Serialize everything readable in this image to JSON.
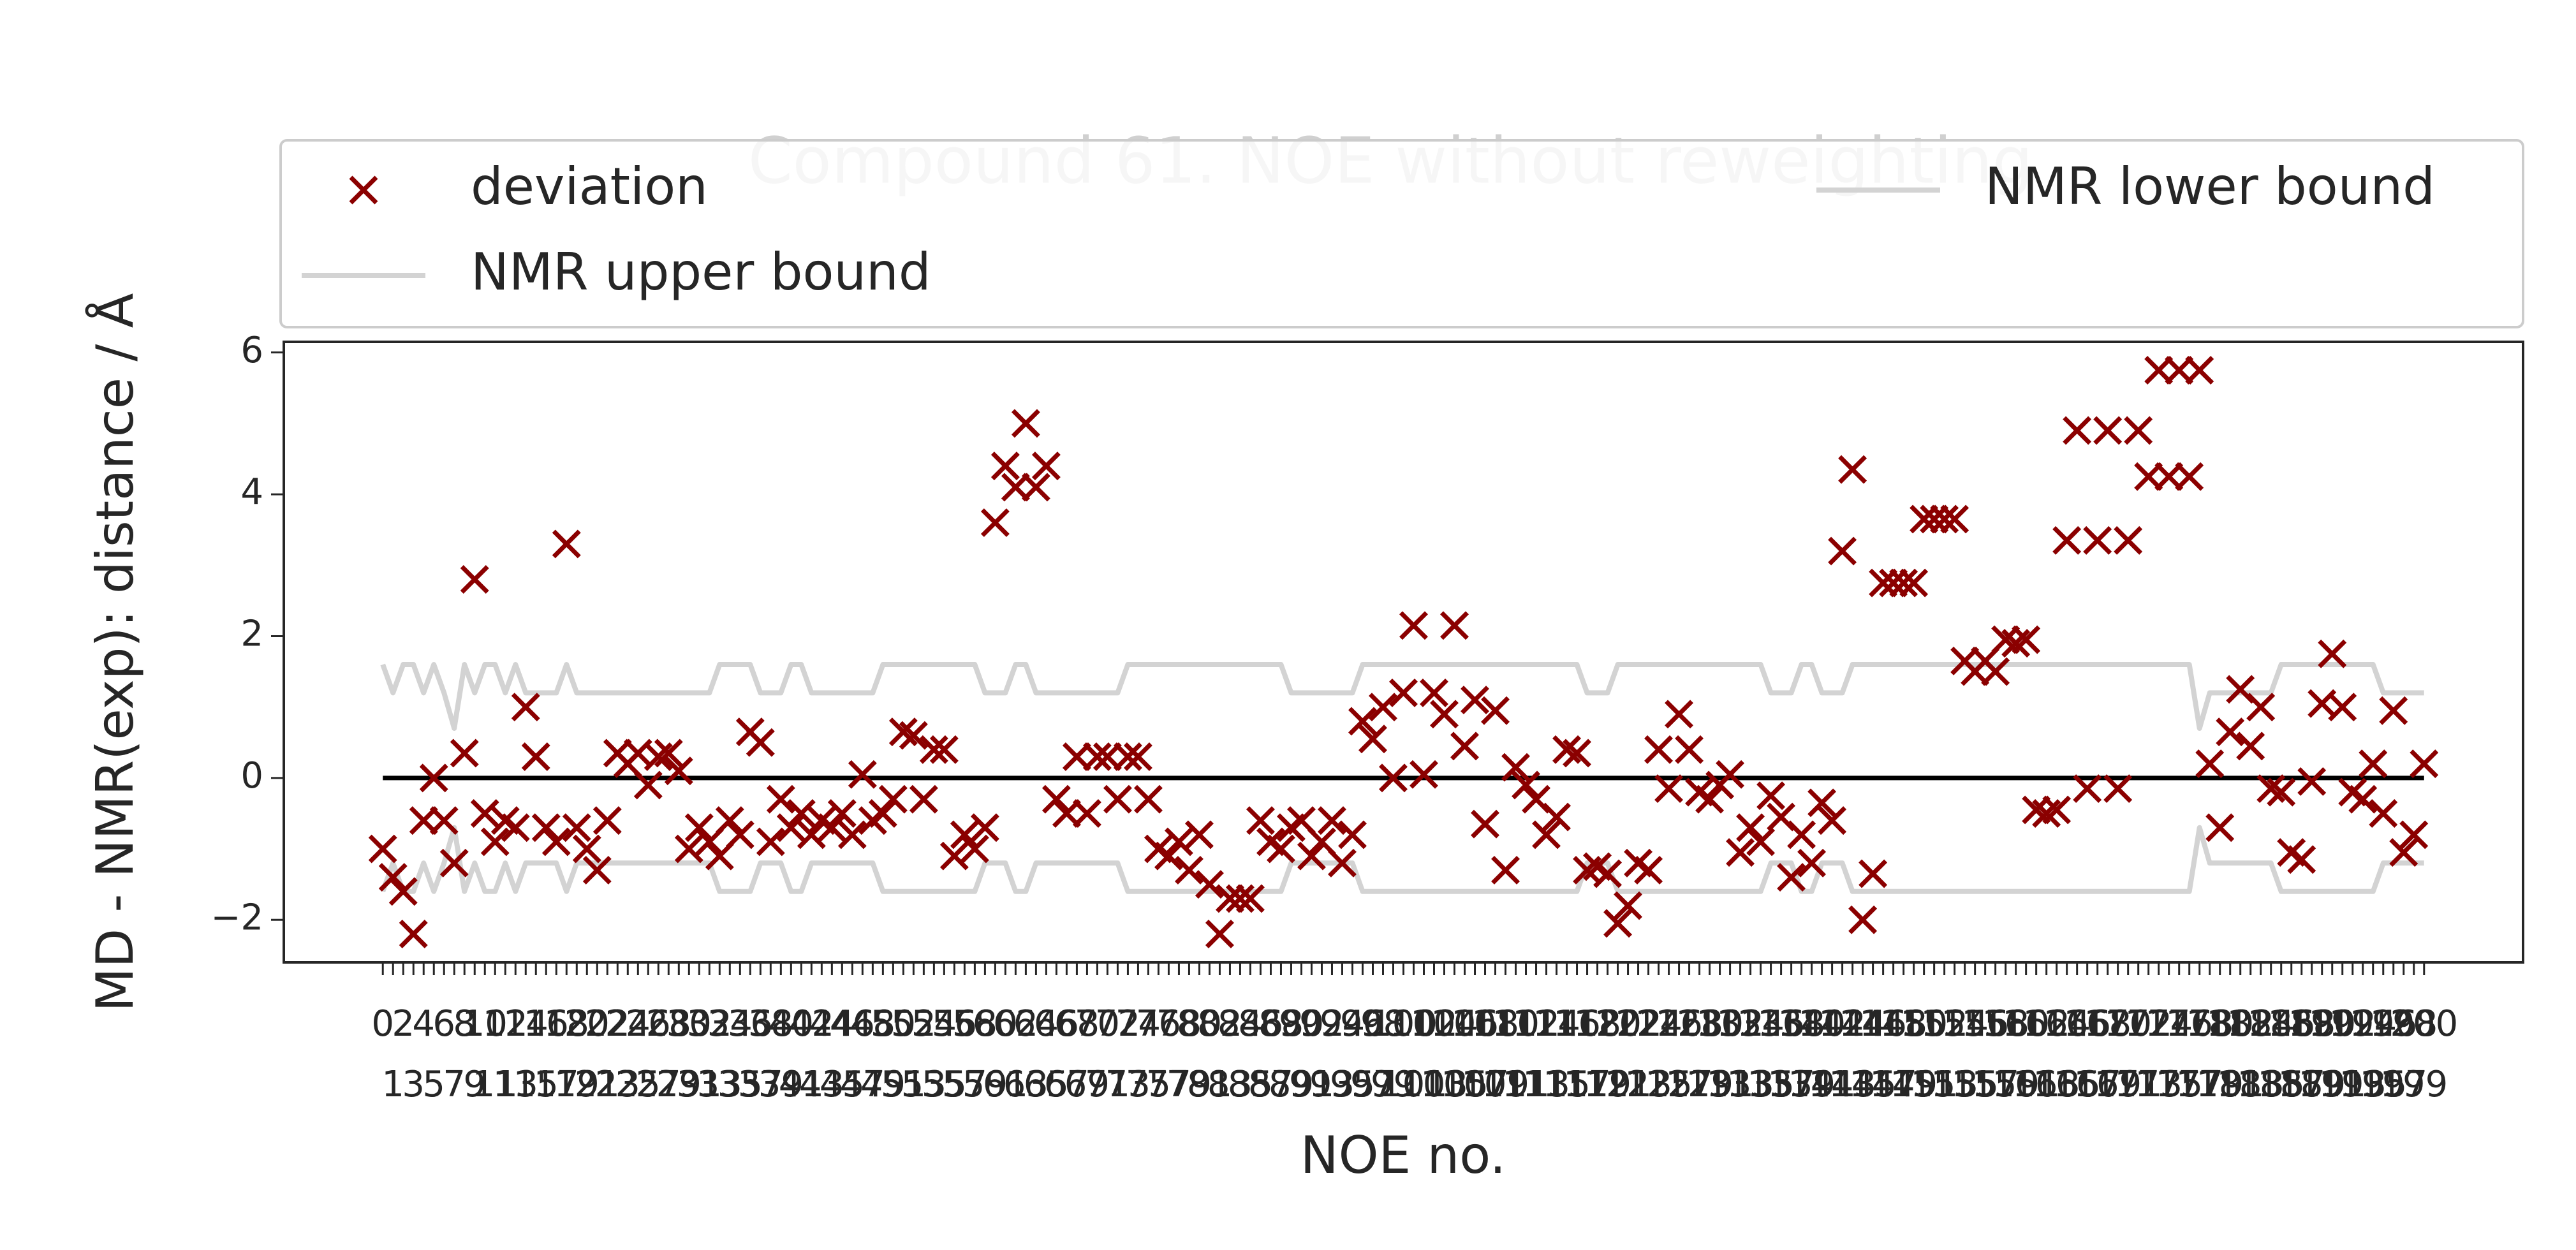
{
  "chart_data": {
    "type": "scatter-with-bounds",
    "title": "Compound 61. NOE without reweighting",
    "xlabel": "NOE no.",
    "ylabel": "MD - NMR(exp): distance / Å",
    "x": [
      0,
      1,
      2,
      3,
      4,
      5,
      6,
      7,
      8,
      9,
      10,
      11,
      12,
      13,
      14,
      15,
      16,
      17,
      18,
      19,
      20,
      21,
      22,
      23,
      24,
      25,
      26,
      27,
      28,
      29,
      30,
      31,
      32,
      33,
      34,
      35,
      36,
      37,
      38,
      39,
      40,
      41,
      42,
      43,
      44,
      45,
      46,
      47,
      48,
      49,
      50,
      51,
      52,
      53,
      54,
      55,
      56,
      57,
      58,
      59,
      60,
      61,
      62,
      63,
      64,
      65,
      66,
      67,
      68,
      69,
      70,
      71,
      72,
      73,
      74,
      75,
      76,
      77,
      78,
      79,
      80,
      81,
      82,
      83,
      84,
      85,
      86,
      87,
      88,
      89,
      90,
      91,
      92,
      93,
      94,
      95,
      96,
      97,
      98,
      99,
      100,
      101,
      102,
      103,
      104,
      105,
      106,
      107,
      108,
      109,
      110,
      111,
      112,
      113,
      114,
      115,
      116,
      117,
      118,
      119,
      120,
      121,
      122,
      123,
      124,
      125,
      126,
      127,
      128,
      129,
      130,
      131,
      132,
      133,
      134,
      135,
      136,
      137,
      138,
      139,
      140,
      141,
      142,
      143,
      144,
      145,
      146,
      147,
      148,
      149,
      150,
      151,
      152,
      153,
      154,
      155,
      156,
      157,
      158,
      159,
      160,
      161,
      162,
      163,
      164,
      165,
      166,
      167,
      168,
      169,
      170,
      171,
      172,
      173,
      174,
      175,
      176,
      177,
      178,
      179,
      180,
      181,
      182,
      183,
      184,
      185,
      186,
      187,
      188,
      189,
      190,
      191,
      192,
      193,
      194,
      195,
      196,
      197,
      198,
      199,
      200
    ],
    "series": [
      {
        "name": "deviation",
        "color": "#8b0000",
        "style": "x-marker",
        "values": [
          -1.0,
          -1.4,
          -1.6,
          -2.2,
          -0.6,
          0.0,
          -0.6,
          -1.2,
          0.35,
          2.8,
          -0.5,
          -0.9,
          -0.6,
          -0.7,
          1.0,
          0.3,
          -0.7,
          -0.9,
          3.3,
          -0.7,
          -1.0,
          -1.3,
          -0.6,
          0.35,
          0.2,
          0.35,
          -0.1,
          0.3,
          0.35,
          0.1,
          -1.0,
          -0.7,
          -0.9,
          -1.1,
          -0.6,
          -0.8,
          0.65,
          0.5,
          -0.9,
          -0.3,
          -0.7,
          -0.5,
          -0.8,
          -0.6,
          -0.7,
          -0.5,
          -0.8,
          0.05,
          -0.6,
          -0.5,
          -0.3,
          0.65,
          0.6,
          -0.3,
          0.4,
          0.4,
          -1.1,
          -0.8,
          -1.0,
          -0.7,
          3.6,
          4.4,
          4.1,
          5.0,
          4.1,
          4.4,
          -0.3,
          -0.5,
          0.3,
          -0.5,
          0.3,
          0.3,
          -0.3,
          0.3,
          0.3,
          -0.3,
          -1.0,
          -1.1,
          -0.9,
          -1.3,
          -0.8,
          -1.5,
          -2.2,
          -1.7,
          -1.7,
          -1.7,
          -0.6,
          -0.9,
          -1.0,
          -0.7,
          -0.6,
          -1.1,
          -0.9,
          -0.6,
          -1.2,
          -0.8,
          0.8,
          0.55,
          1.0,
          0.0,
          1.2,
          2.15,
          0.05,
          1.2,
          0.9,
          2.15,
          0.45,
          1.1,
          -0.65,
          0.95,
          -1.3,
          0.15,
          -0.1,
          -0.3,
          -0.8,
          -0.55,
          0.4,
          0.35,
          -1.3,
          -1.25,
          -1.35,
          -2.05,
          -1.8,
          -1.2,
          -1.3,
          0.4,
          -0.15,
          0.9,
          0.4,
          -0.2,
          -0.3,
          -0.1,
          0.05,
          -1.05,
          -0.7,
          -0.9,
          -0.25,
          -0.55,
          -1.4,
          -0.8,
          -1.2,
          -0.35,
          -0.6,
          3.2,
          4.35,
          -2.0,
          -1.35,
          2.75,
          2.75,
          2.75,
          2.75,
          3.65,
          3.65,
          3.65,
          3.65,
          1.65,
          1.5,
          1.65,
          1.5,
          1.95,
          1.9,
          1.95,
          -0.45,
          -0.5,
          -0.45,
          3.35,
          4.9,
          -0.15,
          3.35,
          4.9,
          -0.15,
          3.35,
          4.9,
          4.25,
          5.75,
          4.25,
          5.75,
          4.25,
          5.75,
          0.2,
          -0.7,
          0.65,
          1.25,
          0.45,
          1.0,
          -0.15,
          -0.2,
          -1.05,
          -1.15,
          -0.05,
          1.05,
          1.75,
          1.0,
          -0.2,
          -0.3,
          0.2,
          -0.5,
          0.95,
          -1.05,
          -0.8,
          0.2
        ]
      },
      {
        "name": "NMR upper bound",
        "color": "#d3d3d3",
        "style": "line",
        "values": [
          1.6,
          1.2,
          1.6,
          1.6,
          1.2,
          1.6,
          1.2,
          0.7,
          1.6,
          1.2,
          1.6,
          1.6,
          1.2,
          1.6,
          1.2,
          1.2,
          1.2,
          1.2,
          1.6,
          1.2,
          1.2,
          1.2,
          1.2,
          1.2,
          1.2,
          1.2,
          1.2,
          1.2,
          1.2,
          1.2,
          1.2,
          1.2,
          1.2,
          1.6,
          1.6,
          1.6,
          1.6,
          1.2,
          1.2,
          1.2,
          1.6,
          1.6,
          1.2,
          1.2,
          1.2,
          1.2,
          1.2,
          1.2,
          1.2,
          1.6,
          1.6,
          1.6,
          1.6,
          1.6,
          1.6,
          1.6,
          1.6,
          1.6,
          1.6,
          1.2,
          1.2,
          1.2,
          1.6,
          1.6,
          1.2,
          1.2,
          1.2,
          1.2,
          1.2,
          1.2,
          1.2,
          1.2,
          1.2,
          1.6,
          1.6,
          1.6,
          1.6,
          1.6,
          1.6,
          1.6,
          1.6,
          1.6,
          1.6,
          1.6,
          1.6,
          1.6,
          1.6,
          1.6,
          1.6,
          1.2,
          1.2,
          1.2,
          1.2,
          1.2,
          1.2,
          1.2,
          1.6,
          1.6,
          1.6,
          1.6,
          1.6,
          1.6,
          1.6,
          1.6,
          1.6,
          1.6,
          1.6,
          1.6,
          1.6,
          1.6,
          1.6,
          1.6,
          1.6,
          1.6,
          1.6,
          1.6,
          1.6,
          1.6,
          1.2,
          1.2,
          1.2,
          1.6,
          1.6,
          1.6,
          1.6,
          1.6,
          1.6,
          1.6,
          1.6,
          1.6,
          1.6,
          1.6,
          1.6,
          1.6,
          1.6,
          1.6,
          1.2,
          1.2,
          1.2,
          1.6,
          1.6,
          1.2,
          1.2,
          1.2,
          1.6,
          1.6,
          1.6,
          1.6,
          1.6,
          1.6,
          1.6,
          1.6,
          1.6,
          1.6,
          1.6,
          1.6,
          1.6,
          1.6,
          1.6,
          1.6,
          1.6,
          1.6,
          1.6,
          1.6,
          1.6,
          1.6,
          1.6,
          1.6,
          1.6,
          1.6,
          1.6,
          1.6,
          1.6,
          1.6,
          1.6,
          1.6,
          1.6,
          1.6,
          0.7,
          1.2,
          1.2,
          1.2,
          1.2,
          1.2,
          1.2,
          1.2,
          1.6,
          1.6,
          1.6,
          1.6,
          1.6,
          1.6,
          1.6,
          1.6,
          1.6,
          1.6,
          1.2,
          1.2,
          1.2,
          1.2,
          1.2
        ]
      },
      {
        "name": "NMR lower bound",
        "color": "#d3d3d3",
        "style": "line",
        "values": [
          -1.6,
          -1.2,
          -1.6,
          -1.6,
          -1.2,
          -1.6,
          -1.2,
          -0.7,
          -1.6,
          -1.2,
          -1.6,
          -1.6,
          -1.2,
          -1.6,
          -1.2,
          -1.2,
          -1.2,
          -1.2,
          -1.6,
          -1.2,
          -1.2,
          -1.2,
          -1.2,
          -1.2,
          -1.2,
          -1.2,
          -1.2,
          -1.2,
          -1.2,
          -1.2,
          -1.2,
          -1.2,
          -1.2,
          -1.6,
          -1.6,
          -1.6,
          -1.6,
          -1.2,
          -1.2,
          -1.2,
          -1.6,
          -1.6,
          -1.2,
          -1.2,
          -1.2,
          -1.2,
          -1.2,
          -1.2,
          -1.2,
          -1.6,
          -1.6,
          -1.6,
          -1.6,
          -1.6,
          -1.6,
          -1.6,
          -1.6,
          -1.6,
          -1.6,
          -1.2,
          -1.2,
          -1.2,
          -1.6,
          -1.6,
          -1.2,
          -1.2,
          -1.2,
          -1.2,
          -1.2,
          -1.2,
          -1.2,
          -1.2,
          -1.2,
          -1.6,
          -1.6,
          -1.6,
          -1.6,
          -1.6,
          -1.6,
          -1.6,
          -1.6,
          -1.6,
          -1.6,
          -1.6,
          -1.6,
          -1.6,
          -1.6,
          -1.6,
          -1.6,
          -1.2,
          -1.2,
          -1.2,
          -1.2,
          -1.2,
          -1.2,
          -1.2,
          -1.6,
          -1.6,
          -1.6,
          -1.6,
          -1.6,
          -1.6,
          -1.6,
          -1.6,
          -1.6,
          -1.6,
          -1.6,
          -1.6,
          -1.6,
          -1.6,
          -1.6,
          -1.6,
          -1.6,
          -1.6,
          -1.6,
          -1.6,
          -1.6,
          -1.6,
          -1.2,
          -1.2,
          -1.2,
          -1.6,
          -1.6,
          -1.6,
          -1.6,
          -1.6,
          -1.6,
          -1.6,
          -1.6,
          -1.6,
          -1.6,
          -1.6,
          -1.6,
          -1.6,
          -1.6,
          -1.6,
          -1.2,
          -1.2,
          -1.2,
          -1.6,
          -1.6,
          -1.2,
          -1.2,
          -1.2,
          -1.6,
          -1.6,
          -1.6,
          -1.6,
          -1.6,
          -1.6,
          -1.6,
          -1.6,
          -1.6,
          -1.6,
          -1.6,
          -1.6,
          -1.6,
          -1.6,
          -1.6,
          -1.6,
          -1.6,
          -1.6,
          -1.6,
          -1.6,
          -1.6,
          -1.6,
          -1.6,
          -1.6,
          -1.6,
          -1.6,
          -1.6,
          -1.6,
          -1.6,
          -1.6,
          -1.6,
          -1.6,
          -1.6,
          -1.6,
          -0.7,
          -1.2,
          -1.2,
          -1.2,
          -1.2,
          -1.2,
          -1.2,
          -1.2,
          -1.6,
          -1.6,
          -1.6,
          -1.6,
          -1.6,
          -1.6,
          -1.6,
          -1.6,
          -1.6,
          -1.6,
          -1.2,
          -1.2,
          -1.2,
          -1.2,
          -1.2
        ]
      }
    ],
    "xlim": [
      -9.7,
      209.7
    ],
    "xticks": [
      0,
      1,
      2,
      3,
      4,
      5,
      6,
      7,
      8,
      9,
      10,
      11,
      12,
      13,
      14,
      15,
      16,
      17,
      18,
      19,
      20,
      21,
      22,
      23,
      24,
      25,
      26,
      27,
      28,
      29,
      30,
      31,
      32,
      33,
      34,
      35,
      36,
      37,
      38,
      39,
      40,
      41,
      42,
      43,
      44,
      45,
      46,
      47,
      48,
      49,
      50,
      51,
      52,
      53,
      54,
      55,
      56,
      57,
      58,
      59,
      60,
      61,
      62,
      63,
      64,
      65,
      66,
      67,
      68,
      69,
      70,
      71,
      72,
      73,
      74,
      75,
      76,
      77,
      78,
      79,
      80,
      81,
      82,
      83,
      84,
      85,
      86,
      87,
      88,
      89,
      90,
      91,
      92,
      93,
      94,
      95,
      96,
      97,
      98,
      99,
      100,
      101,
      102,
      103,
      104,
      105,
      106,
      107,
      108,
      109,
      110,
      111,
      112,
      113,
      114,
      115,
      116,
      117,
      118,
      119,
      120,
      121,
      122,
      123,
      124,
      125,
      126,
      127,
      128,
      129,
      130,
      131,
      132,
      133,
      134,
      135,
      136,
      137,
      138,
      139,
      140,
      141,
      142,
      143,
      144,
      145,
      146,
      147,
      148,
      149,
      150,
      151,
      152,
      153,
      154,
      155,
      156,
      157,
      158,
      159,
      160,
      161,
      162,
      163,
      164,
      165,
      166,
      167,
      168,
      169,
      170,
      171,
      172,
      173,
      174,
      175,
      176,
      177,
      178,
      179,
      180,
      181,
      182,
      183,
      184,
      185,
      186,
      187,
      188,
      189,
      190,
      191,
      192,
      193,
      194,
      195,
      196,
      197,
      198,
      199,
      200
    ],
    "ylim": [
      -2.6,
      6.15
    ],
    "yticks": [
      {
        "value": -2,
        "label": "−2"
      },
      0,
      2,
      4,
      6
    ],
    "grid": false,
    "legend": "top"
  }
}
